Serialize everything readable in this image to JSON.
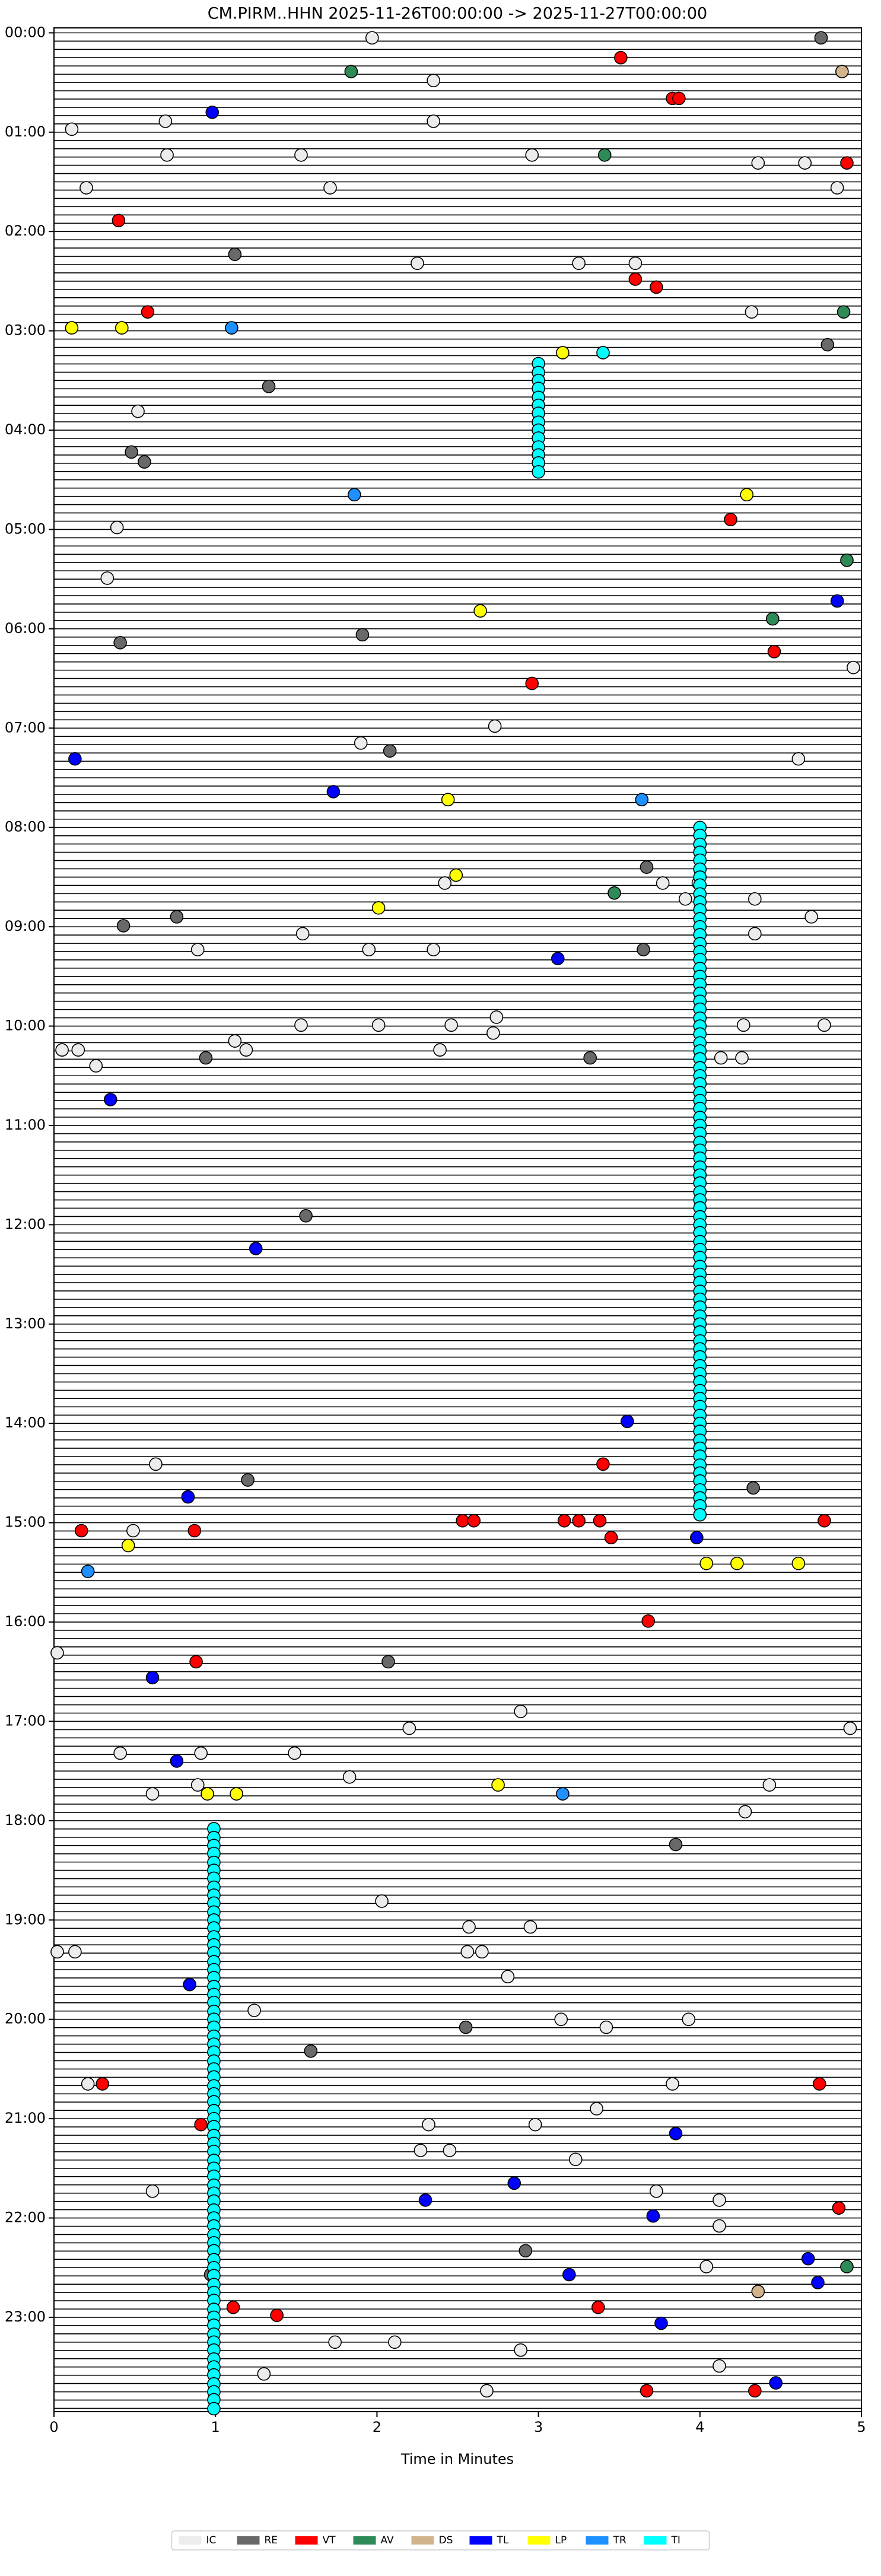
{
  "chart_data": {
    "type": "scatter",
    "title": "CM.PIRM..HHN  2025-11-26T00:00:00 -> 2025-11-27T00:00:00",
    "x_label": "Time in Minutes",
    "xlim": [
      0,
      5
    ],
    "xticks": [
      0,
      1,
      2,
      3,
      4,
      5
    ],
    "ylim": [
      23.95,
      -0.05
    ],
    "yticks": [
      {
        "value": 0,
        "label": "00:00"
      },
      {
        "value": 1,
        "label": "01:00"
      },
      {
        "value": 2,
        "label": "02:00"
      },
      {
        "value": 3,
        "label": "03:00"
      },
      {
        "value": 4,
        "label": "04:00"
      },
      {
        "value": 5,
        "label": "05:00"
      },
      {
        "value": 6,
        "label": "06:00"
      },
      {
        "value": 7,
        "label": "07:00"
      },
      {
        "value": 8,
        "label": "08:00"
      },
      {
        "value": 9,
        "label": "09:00"
      },
      {
        "value": 10,
        "label": "10:00"
      },
      {
        "value": 11,
        "label": "11:00"
      },
      {
        "value": 12,
        "label": "12:00"
      },
      {
        "value": 13,
        "label": "13:00"
      },
      {
        "value": 14,
        "label": "14:00"
      },
      {
        "value": 15,
        "label": "15:00"
      },
      {
        "value": 16,
        "label": "16:00"
      },
      {
        "value": 17,
        "label": "17:00"
      },
      {
        "value": 18,
        "label": "18:00"
      },
      {
        "value": 19,
        "label": "19:00"
      },
      {
        "value": 20,
        "label": "20:00"
      },
      {
        "value": 21,
        "label": "21:00"
      },
      {
        "value": 22,
        "label": "22:00"
      },
      {
        "value": 23,
        "label": "23:00"
      }
    ],
    "grid": false,
    "legend": "bottom",
    "series": [
      {
        "name": "IC",
        "color": "#ececec",
        "x": [
          1.97,
          2.35,
          0.11,
          0.69,
          2.35,
          0.7,
          1.53,
          2.96,
          4.36,
          4.65,
          0.2,
          1.71,
          4.85,
          2.25,
          3.25,
          3.6,
          4.32,
          0.52,
          0.39,
          0.33,
          4.95,
          2.73,
          1.9,
          4.61,
          2.42,
          3.77,
          3.99,
          4.34,
          3.91,
          4.69,
          1.54,
          0.89,
          1.95,
          2.35,
          4.34,
          2.74,
          1.53,
          2.01,
          2.46,
          2.72,
          4.27,
          4.77,
          1.12,
          0.05,
          0.15,
          1.19,
          2.39,
          4.13,
          4.26,
          0.26,
          0.63,
          0.49,
          0.02,
          2.2,
          2.89,
          4.93,
          0.41,
          0.91,
          1.49,
          1.83,
          0.61,
          0.89,
          4.43,
          4.28,
          2.03,
          2.57,
          2.95,
          0.02,
          0.13,
          2.56,
          2.65,
          2.81,
          1.24,
          3.14,
          3.42,
          3.93,
          0.21,
          3.83,
          2.32,
          3.36,
          2.98,
          2.27,
          2.45,
          3.23,
          0.61,
          3.73,
          4.12,
          4.12,
          4.04,
          1.74,
          2.11,
          2.89,
          4.12,
          1.3,
          2.68
        ],
        "y": [
          0.05,
          0.48,
          0.97,
          0.89,
          0.89,
          1.23,
          1.23,
          1.23,
          1.31,
          1.31,
          1.56,
          1.56,
          1.56,
          2.32,
          2.32,
          2.32,
          2.81,
          3.81,
          4.98,
          5.49,
          6.39,
          6.98,
          7.15,
          7.31,
          8.56,
          8.56,
          8.56,
          8.72,
          8.72,
          8.9,
          9.07,
          9.23,
          9.23,
          9.23,
          9.07,
          9.91,
          9.99,
          9.99,
          9.99,
          10.07,
          9.99,
          9.99,
          10.15,
          10.24,
          10.24,
          10.24,
          10.24,
          10.32,
          10.32,
          10.4,
          14.41,
          15.08,
          16.31,
          17.07,
          16.9,
          17.07,
          17.32,
          17.32,
          17.32,
          17.56,
          17.73,
          17.64,
          17.64,
          17.91,
          18.81,
          19.07,
          19.07,
          19.32,
          19.32,
          19.32,
          19.32,
          19.57,
          19.91,
          20,
          20.08,
          20,
          20.65,
          20.65,
          21.06,
          20.9,
          21.06,
          21.32,
          21.32,
          21.41,
          21.73,
          21.73,
          21.82,
          22.08,
          22.49,
          23.25,
          23.25,
          23.33,
          23.49,
          23.57,
          23.74
        ]
      },
      {
        "name": "RE",
        "color": "#696969",
        "x": [
          4.75,
          1.12,
          1.33,
          0.48,
          0.56,
          0.41,
          1.91,
          2.08,
          3.67,
          0.76,
          0.43,
          3.65,
          0.94,
          3.32,
          1.56,
          1.2,
          4.33,
          2.07,
          3.85,
          2.55,
          1.59,
          2.92,
          0.97,
          4.79
        ],
        "y": [
          0.05,
          2.23,
          3.56,
          4.22,
          4.32,
          6.14,
          6.06,
          7.23,
          8.4,
          8.9,
          8.99,
          9.23,
          10.32,
          10.32,
          11.91,
          14.57,
          14.65,
          16.4,
          18.24,
          20.08,
          20.32,
          22.33,
          22.57,
          3.14
        ]
      },
      {
        "name": "VT",
        "color": "#ff0000",
        "x": [
          3.51,
          3.83,
          3.87,
          4.91,
          0.4,
          3.6,
          3.73,
          0.58,
          4.19,
          4.46,
          2.96,
          3.4,
          2.53,
          2.6,
          3.16,
          3.25,
          3.38,
          0.87,
          4.77,
          0.17,
          3.45,
          3.68,
          0.88,
          0.3,
          4.74,
          0.91,
          4.86,
          1.11,
          1.38,
          3.37,
          3.67,
          4.34
        ],
        "y": [
          0.25,
          0.66,
          0.66,
          1.31,
          1.89,
          2.48,
          2.56,
          2.81,
          4.9,
          6.23,
          6.55,
          14.41,
          14.98,
          14.98,
          14.98,
          14.98,
          14.98,
          15.08,
          14.98,
          15.08,
          15.15,
          15.99,
          16.4,
          20.65,
          20.65,
          21.06,
          21.9,
          22.9,
          22.98,
          22.9,
          23.74,
          23.74
        ]
      },
      {
        "name": "AV",
        "color": "#2e8b57",
        "x": [
          1.84,
          3.41,
          4.89,
          4.91,
          4.45,
          3.47,
          4.91
        ],
        "y": [
          0.39,
          1.23,
          2.81,
          5.31,
          5.9,
          8.66,
          22.49
        ]
      },
      {
        "name": "DS",
        "color": "#d2b48c",
        "x": [
          4.88,
          4.36
        ],
        "y": [
          0.39,
          22.74
        ]
      },
      {
        "name": "TL",
        "color": "#0000ff",
        "x": [
          0.98,
          4.85,
          0.13,
          1.73,
          3.12,
          0.35,
          1.25,
          3.55,
          0.83,
          3.98,
          0.61,
          0.76,
          0.84,
          3.85,
          2.85,
          2.3,
          3.71,
          4.67,
          3.19,
          4.73,
          3.76,
          4.47
        ],
        "y": [
          0.8,
          5.72,
          7.31,
          7.64,
          9.32,
          10.74,
          12.24,
          13.98,
          14.74,
          15.15,
          16.56,
          17.4,
          19.65,
          21.15,
          21.65,
          21.82,
          21.98,
          22.41,
          22.57,
          22.65,
          23.06,
          23.66
        ]
      },
      {
        "name": "LP",
        "color": "#ffff00",
        "x": [
          0.11,
          0.42,
          3.15,
          4.29,
          2.64,
          2.44,
          2.49,
          2.01,
          0.46,
          4.04,
          4.23,
          4.61,
          2.75,
          0.95,
          1.13
        ],
        "y": [
          2.97,
          2.97,
          3.22,
          4.65,
          5.82,
          7.72,
          8.48,
          8.81,
          15.23,
          15.41,
          15.41,
          15.41,
          17.64,
          17.73,
          17.73
        ]
      },
      {
        "name": "TR",
        "color": "#1e90ff",
        "x": [
          1.1,
          1.86,
          3.64,
          0.21,
          3.15
        ],
        "y": [
          2.97,
          4.65,
          7.72,
          15.49,
          17.73
        ]
      },
      {
        "name": "TI",
        "color": "#00ffff",
        "x": [
          3,
          3,
          3,
          3,
          3,
          3,
          3,
          3,
          3,
          3,
          3,
          3,
          3,
          3,
          3.4,
          4,
          4,
          4,
          4,
          4,
          4,
          4,
          4,
          4,
          4,
          4,
          4,
          4,
          4,
          4,
          4,
          4,
          4,
          4,
          4,
          4,
          4,
          4,
          4,
          4,
          4,
          4,
          4,
          4,
          4,
          4,
          4,
          4,
          4,
          4,
          4,
          4,
          4,
          4,
          4,
          4,
          4,
          4,
          4,
          4,
          4,
          4,
          4,
          4,
          4,
          4,
          4,
          4,
          4,
          4,
          4,
          4,
          4,
          4,
          4,
          4,
          4,
          4,
          4,
          4,
          4,
          4,
          4,
          4,
          4,
          4,
          4,
          4,
          4,
          4,
          4,
          4,
          4,
          4,
          4,
          4,
          4,
          4,
          4,
          0.99,
          0.99,
          0.99,
          0.99,
          0.99,
          0.99,
          0.99,
          0.99,
          0.99,
          0.99,
          0.99,
          0.99,
          0.99,
          0.99,
          0.99,
          0.99,
          0.99,
          0.99,
          0.99,
          0.99,
          0.99,
          0.99,
          0.99,
          0.99,
          0.99,
          0.99,
          0.99,
          0.99,
          0.99,
          0.99,
          0.99,
          0.99,
          0.99,
          0.99,
          0.99,
          0.99,
          0.99,
          0.99,
          0.99,
          0.99,
          0.99,
          0.99,
          0.99,
          0.99,
          0.99,
          0.99,
          0.99,
          0.99,
          0.99,
          0.99,
          0.99,
          0.99,
          0.99,
          0.99,
          0.99,
          0.99,
          0.99,
          0.99,
          0.99,
          0.99,
          0.99,
          0.99,
          0.99,
          0.99,
          0.99,
          0.99,
          0.99,
          0.99,
          0.99,
          0.99,
          0.99
        ],
        "y": [
          3.33,
          3.42,
          3.5,
          3.58,
          3.67,
          3.75,
          3.83,
          3.92,
          4,
          4.08,
          4.17,
          4.25,
          4.33,
          4.42,
          3.22,
          8,
          8.08,
          8.17,
          8.25,
          8.33,
          8.42,
          8.5,
          8.58,
          8.67,
          8.75,
          8.83,
          8.92,
          9,
          9.08,
          9.17,
          9.25,
          9.33,
          9.42,
          9.5,
          9.58,
          9.67,
          9.75,
          9.83,
          9.92,
          10,
          10.08,
          10.17,
          10.25,
          10.33,
          10.42,
          10.5,
          10.58,
          10.67,
          10.75,
          10.83,
          10.92,
          11,
          11.08,
          11.17,
          11.25,
          11.33,
          11.42,
          11.5,
          11.58,
          11.67,
          11.75,
          11.83,
          11.92,
          12,
          12.08,
          12.17,
          12.25,
          12.33,
          12.42,
          12.5,
          12.58,
          12.67,
          12.75,
          12.83,
          12.92,
          13,
          13.08,
          13.17,
          13.25,
          13.33,
          13.42,
          13.5,
          13.58,
          13.67,
          13.75,
          13.83,
          13.92,
          14,
          14.08,
          14.17,
          14.25,
          14.33,
          14.42,
          14.5,
          14.58,
          14.67,
          14.75,
          14.83,
          14.92,
          18.08,
          18.17,
          18.25,
          18.33,
          18.42,
          18.5,
          18.58,
          18.67,
          18.75,
          18.83,
          18.92,
          19,
          19.08,
          19.17,
          19.25,
          19.33,
          19.42,
          19.5,
          19.58,
          19.67,
          19.75,
          19.83,
          19.92,
          20,
          20.08,
          20.17,
          20.25,
          20.33,
          20.42,
          20.5,
          20.58,
          20.67,
          20.75,
          20.83,
          20.92,
          21,
          21.08,
          21.17,
          21.25,
          21.33,
          21.42,
          21.5,
          21.58,
          21.67,
          21.75,
          21.83,
          21.92,
          22,
          22.08,
          22.17,
          22.25,
          22.33,
          22.42,
          22.5,
          22.58,
          22.67,
          22.75,
          22.83,
          22.92,
          23,
          23.08,
          23.17,
          23.25,
          23.33,
          23.42,
          23.5,
          23.58,
          23.67,
          23.75,
          23.83,
          23.92
        ]
      }
    ]
  }
}
